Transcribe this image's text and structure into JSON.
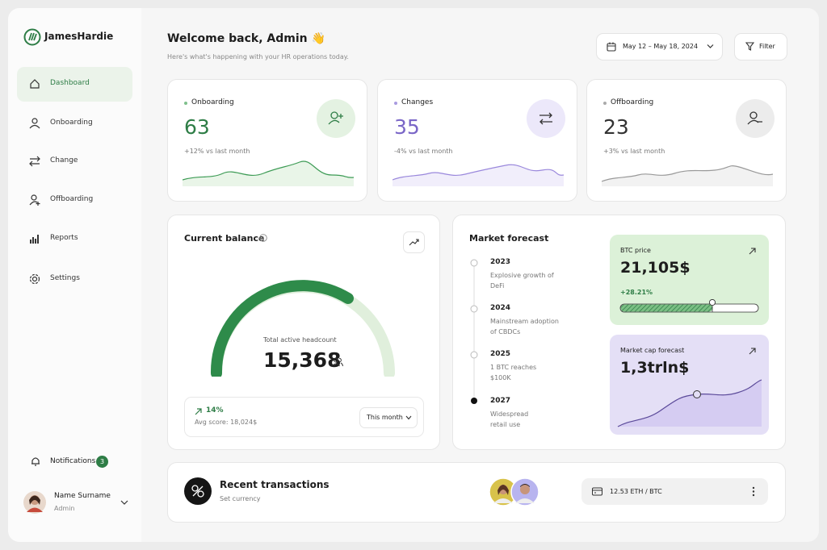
{
  "brand": "JamesHardie",
  "nav": [
    "Dashboard",
    "Onboarding",
    "Change",
    "Offboarding",
    "Reports",
    "Settings"
  ],
  "notifications": {
    "label": "Notifications",
    "count": 3
  },
  "user": {
    "name": "Name Surname",
    "role": "Admin"
  },
  "header": {
    "title": "Welcome back, Admin 👋",
    "subtitle": "Here's what's happening with your HR operations today.",
    "date_range": "May 12 – May 18, 2024",
    "filter": "Filter"
  },
  "stats": [
    {
      "label": "Onboarding",
      "value": 63,
      "change": "+12% vs last month"
    },
    {
      "label": "Changes",
      "value": 35,
      "change": "-4% vs last month"
    },
    {
      "label": "Offboarding",
      "value": 23,
      "change": "+3% vs last month"
    }
  ],
  "balance": {
    "title": "Current balance",
    "caption": "Total active headcount",
    "value": "15,368",
    "change": "14%",
    "avg": "Avg score: 18,024$",
    "period": "This month"
  },
  "forecast": {
    "title": "Market forecast",
    "timeline": [
      {
        "year": "2023",
        "text": "Explosive growth of DeFi"
      },
      {
        "year": "2024",
        "text": "Mainstream adoption of CBDCs"
      },
      {
        "year": "2025",
        "text": "1 BTC reaches $100K"
      },
      {
        "year": "2027",
        "text": "Widespread retail use"
      }
    ],
    "btc": {
      "label": "BTC price",
      "value": "21,105$",
      "change": "+28.21%"
    },
    "market_cap": {
      "label": "Market cap forecast",
      "value": "1,3trln$"
    }
  },
  "transactions": {
    "title": "Recent transactions",
    "subtitle": "Set currency",
    "rate": "12.53 ETH / BTC"
  }
}
